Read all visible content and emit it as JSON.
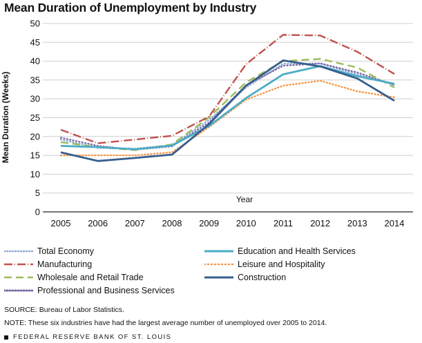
{
  "title": "Mean Duration of Unemployment by Industry",
  "source": "SOURCE: Bureau of Labor Statistics.",
  "note": "NOTE: These six industries have had the largest average number of unemployed over 2005 to 2014.",
  "brand": "FEDERAL RESERVE BANK OF ST. LOUIS",
  "chart_data": {
    "type": "line",
    "xlabel": "Year",
    "ylabel": "Mean Duration (Weeks)",
    "x": [
      "2005",
      "2006",
      "2007",
      "2008",
      "2009",
      "2010",
      "2011",
      "2012",
      "2013",
      "2014"
    ],
    "ylim": [
      0,
      50
    ],
    "yticks": [
      0,
      5,
      10,
      15,
      20,
      25,
      30,
      35,
      40,
      45,
      50
    ],
    "grid": true,
    "legend_position": "bottom",
    "series": [
      {
        "name": "Total Economy",
        "color": "#8fa8d0",
        "dash": "dotted",
        "values": [
          19.2,
          17.0,
          16.8,
          17.7,
          24.4,
          33.0,
          39.3,
          39.4,
          36.5,
          33.7
        ]
      },
      {
        "name": "Manufacturing",
        "color": "#c0504d",
        "dash": "dashdot",
        "values": [
          21.8,
          18.2,
          19.2,
          20.2,
          25.3,
          39.2,
          47.0,
          46.8,
          42.5,
          36.6
        ]
      },
      {
        "name": "Wholesale and Retail Trade",
        "color": "#9bbb59",
        "dash": "longdash",
        "values": [
          18.5,
          17.2,
          16.4,
          17.9,
          25.1,
          34.4,
          40.0,
          40.6,
          38.3,
          33.0
        ]
      },
      {
        "name": "Professional and Business Services",
        "color": "#7a6aa6",
        "dash": "dotted",
        "values": [
          19.7,
          17.5,
          16.5,
          17.4,
          23.7,
          33.6,
          38.8,
          39.4,
          37.0,
          33.7
        ]
      },
      {
        "name": "Education and Health Services",
        "color": "#4bacc6",
        "dash": "solid",
        "values": [
          17.5,
          17.2,
          16.6,
          17.6,
          22.8,
          30.2,
          36.5,
          38.7,
          36.0,
          34.0
        ]
      },
      {
        "name": "Leisure and Hospitality",
        "color": "#f79646",
        "dash": "dotted",
        "values": [
          15.0,
          15.0,
          15.0,
          15.8,
          22.5,
          29.8,
          33.5,
          34.8,
          32.0,
          30.4
        ]
      },
      {
        "name": "Construction",
        "color": "#355e8d",
        "dash": "solid",
        "values": [
          15.8,
          13.5,
          14.3,
          15.2,
          23.3,
          33.5,
          40.2,
          38.6,
          35.4,
          29.5
        ]
      }
    ]
  }
}
